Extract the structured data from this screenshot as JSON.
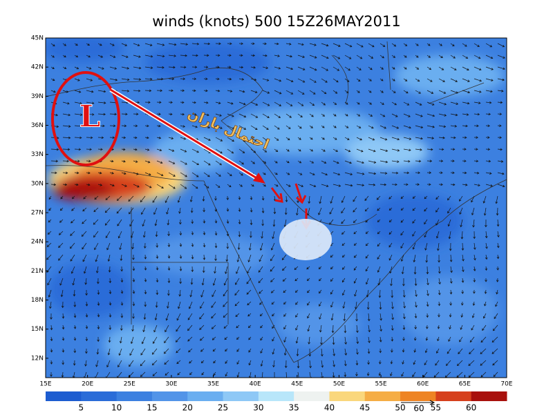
{
  "title": "winds (knots) 500 15Z26MAY2011",
  "lat_labels": [
    "45N",
    "42N",
    "39N",
    "36N",
    "33N",
    "30N",
    "27N",
    "24N",
    "21N",
    "18N",
    "15N",
    "12N"
  ],
  "lon_labels": [
    "15E",
    "20E",
    "25E",
    "30E",
    "35E",
    "40E",
    "45E",
    "50E",
    "55E",
    "60E",
    "65E",
    "70E"
  ],
  "annotations": {
    "low": "L",
    "persian": "احتمال باران"
  },
  "colorbar": {
    "levels": [
      5,
      10,
      15,
      20,
      25,
      30,
      35,
      40,
      45,
      50,
      55,
      60
    ],
    "colors": [
      "#1c5cd0",
      "#2a6cd8",
      "#3c80e0",
      "#5294e8",
      "#6aaef0",
      "#8ec8f6",
      "#b8e6fa",
      "#eef2f0",
      "#fad77c",
      "#f5ad45",
      "#ee8424",
      "#d6401c",
      "#a8100c"
    ],
    "reference_vector": 60
  }
}
